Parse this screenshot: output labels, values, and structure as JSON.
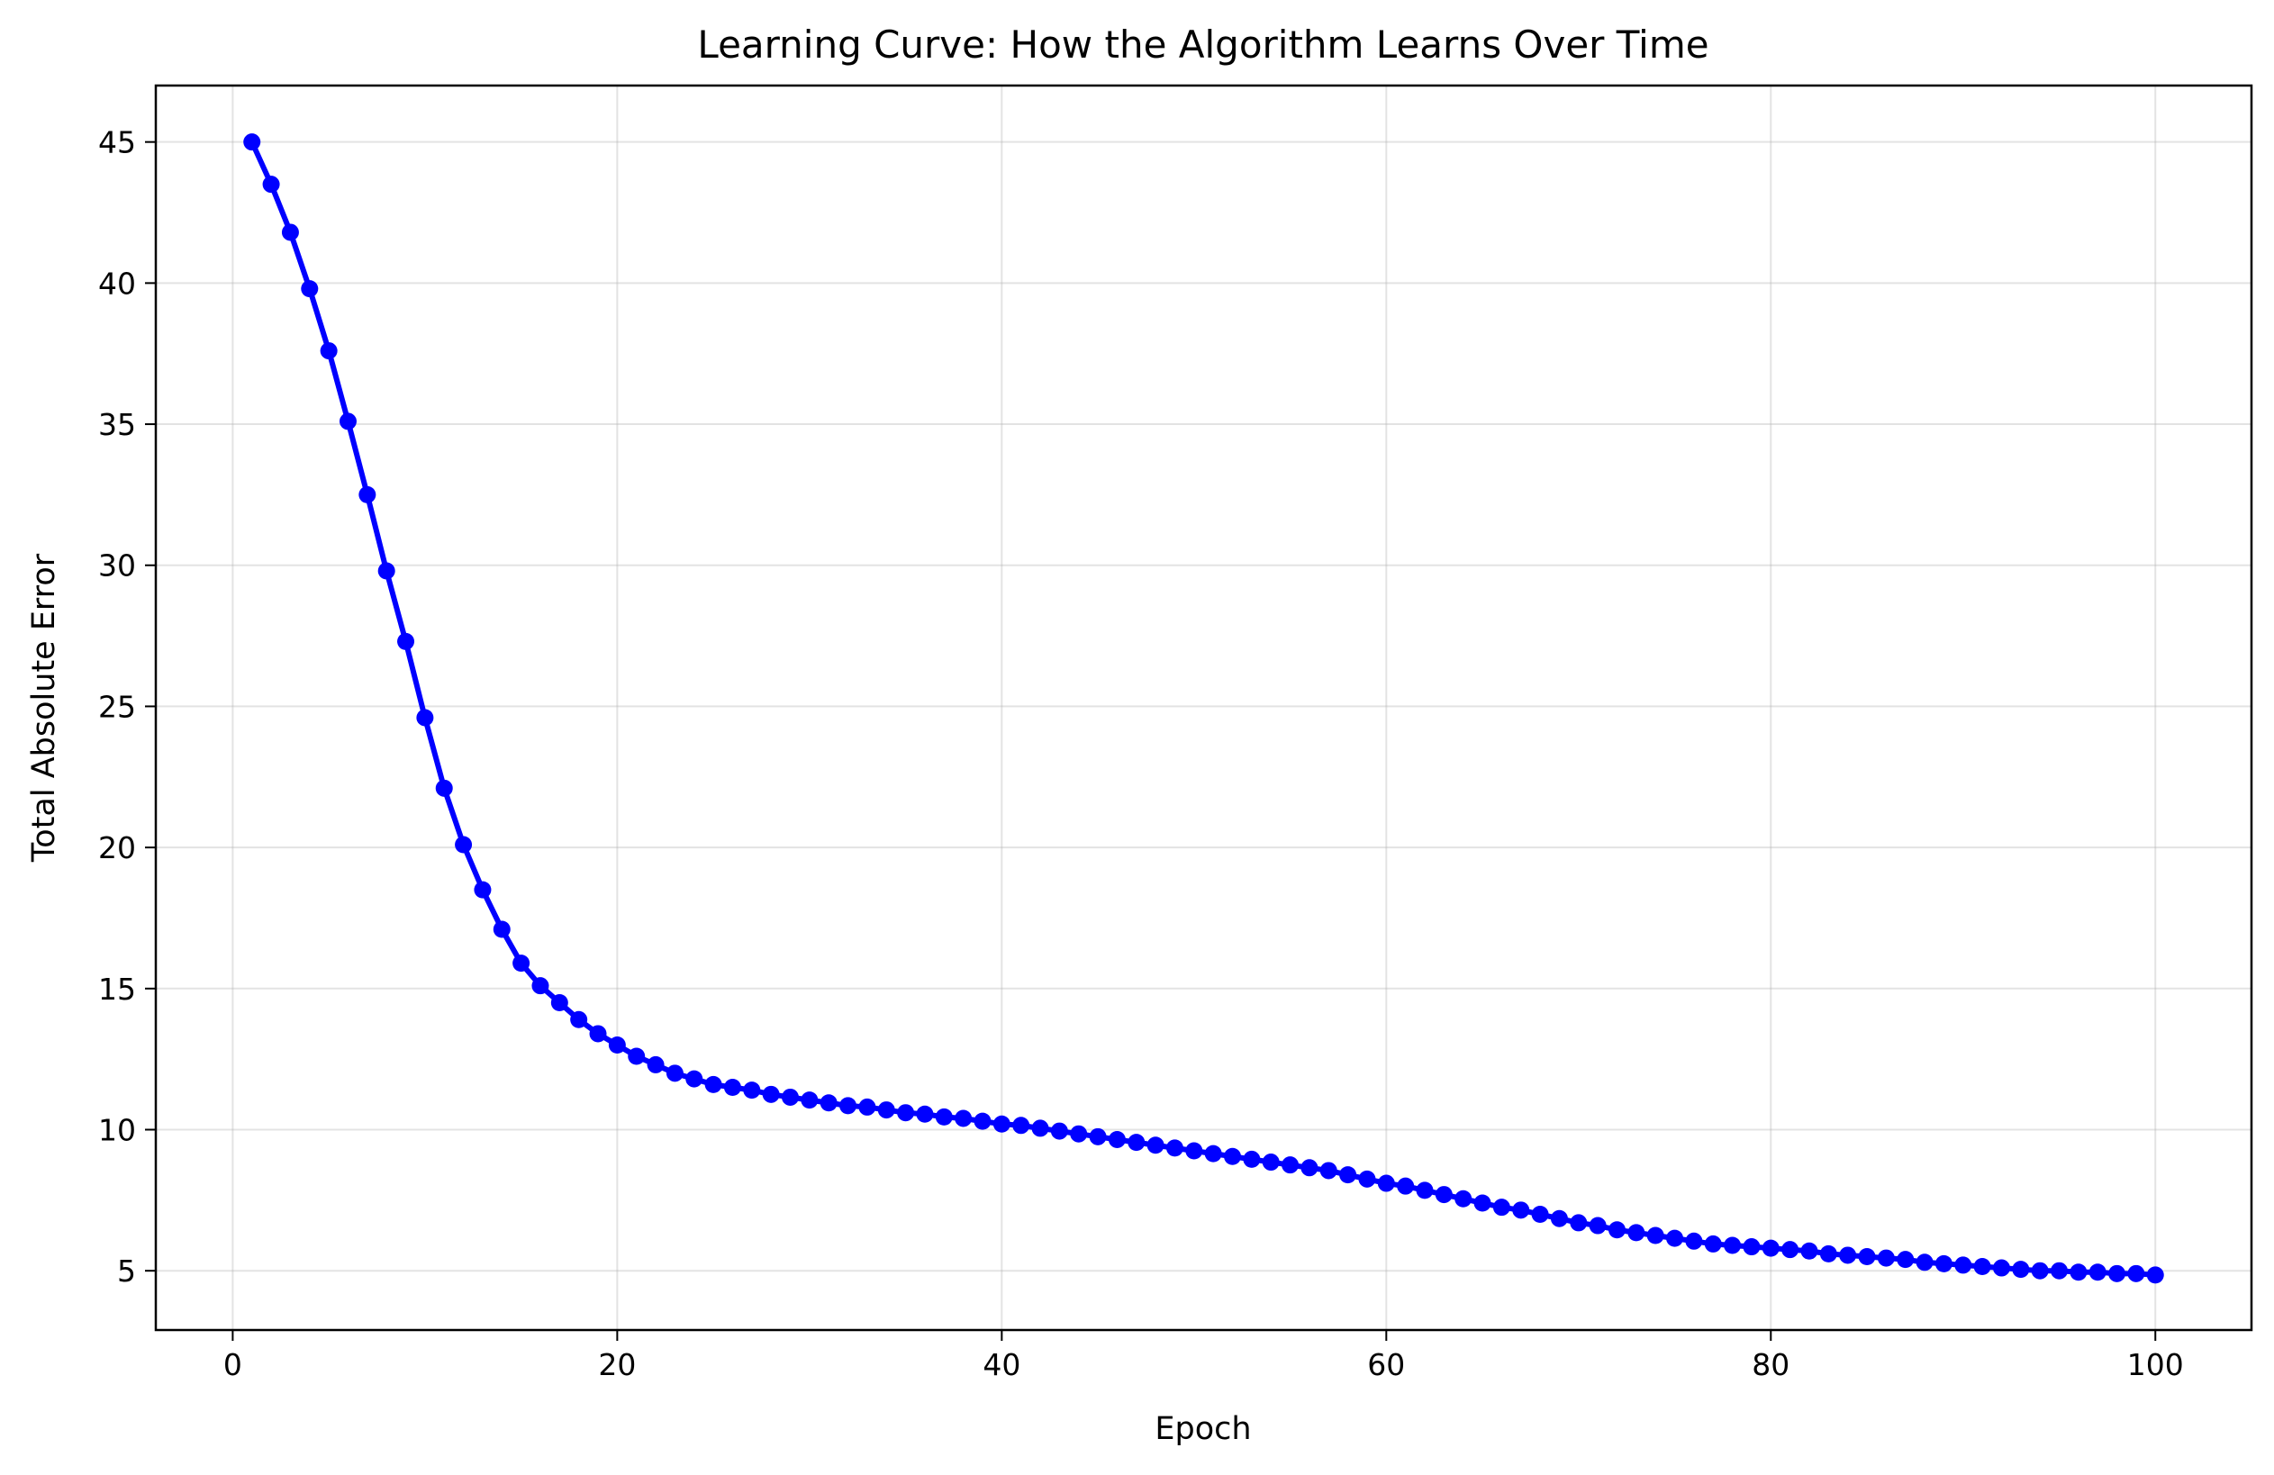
{
  "chart_data": {
    "type": "line",
    "title": "Learning Curve: How the Algorithm Learns Over Time",
    "xlabel": "Epoch",
    "ylabel": "Total Absolute Error",
    "xlim": [
      -4,
      105
    ],
    "ylim": [
      2.9,
      47
    ],
    "xticks": [
      0,
      20,
      40,
      60,
      80,
      100
    ],
    "xtick_labels": [
      "0",
      "20",
      "40",
      "60",
      "80",
      "100"
    ],
    "yticks": [
      5,
      10,
      15,
      20,
      25,
      30,
      35,
      40,
      45
    ],
    "ytick_labels": [
      "5",
      "10",
      "15",
      "20",
      "25",
      "30",
      "35",
      "40",
      "45"
    ],
    "grid": true,
    "legend": "none",
    "color": "#0000ff",
    "marker": "circle",
    "series": [
      {
        "x": [
          1,
          2,
          3,
          4,
          5,
          6,
          7,
          8,
          9,
          10,
          11,
          12,
          13,
          14,
          15,
          16,
          17,
          18,
          19,
          20,
          21,
          22,
          23,
          24,
          25,
          26,
          27,
          28,
          29,
          30,
          31,
          32,
          33,
          34,
          35,
          36,
          37,
          38,
          39,
          40,
          41,
          42,
          43,
          44,
          45,
          46,
          47,
          48,
          49,
          50,
          51,
          52,
          53,
          54,
          55,
          56,
          57,
          58,
          59,
          60,
          61,
          62,
          63,
          64,
          65,
          66,
          67,
          68,
          69,
          70,
          71,
          72,
          73,
          74,
          75,
          76,
          77,
          78,
          79,
          80,
          81,
          82,
          83,
          84,
          85,
          86,
          87,
          88,
          89,
          90,
          91,
          92,
          93,
          94,
          95,
          96,
          97,
          98,
          99,
          100
        ],
        "values": [
          45.0,
          43.5,
          41.8,
          39.8,
          37.6,
          35.1,
          32.5,
          29.8,
          27.3,
          24.6,
          22.1,
          20.1,
          18.5,
          17.1,
          15.9,
          15.1,
          14.5,
          13.9,
          13.4,
          13.0,
          12.6,
          12.3,
          12.0,
          11.8,
          11.6,
          11.5,
          11.4,
          11.25,
          11.15,
          11.05,
          10.95,
          10.85,
          10.8,
          10.7,
          10.6,
          10.55,
          10.45,
          10.4,
          10.3,
          10.2,
          10.15,
          10.05,
          9.95,
          9.85,
          9.75,
          9.65,
          9.55,
          9.45,
          9.35,
          9.25,
          9.15,
          9.05,
          8.95,
          8.85,
          8.75,
          8.65,
          8.55,
          8.4,
          8.25,
          8.1,
          8.0,
          7.85,
          7.7,
          7.55,
          7.4,
          7.25,
          7.15,
          7.0,
          6.85,
          6.7,
          6.6,
          6.45,
          6.35,
          6.25,
          6.15,
          6.05,
          5.95,
          5.9,
          5.85,
          5.8,
          5.75,
          5.7,
          5.6,
          5.55,
          5.5,
          5.45,
          5.4,
          5.3,
          5.25,
          5.2,
          5.15,
          5.1,
          5.05,
          5.0,
          5.0,
          4.95,
          4.95,
          4.9,
          4.9,
          4.85
        ]
      }
    ]
  }
}
